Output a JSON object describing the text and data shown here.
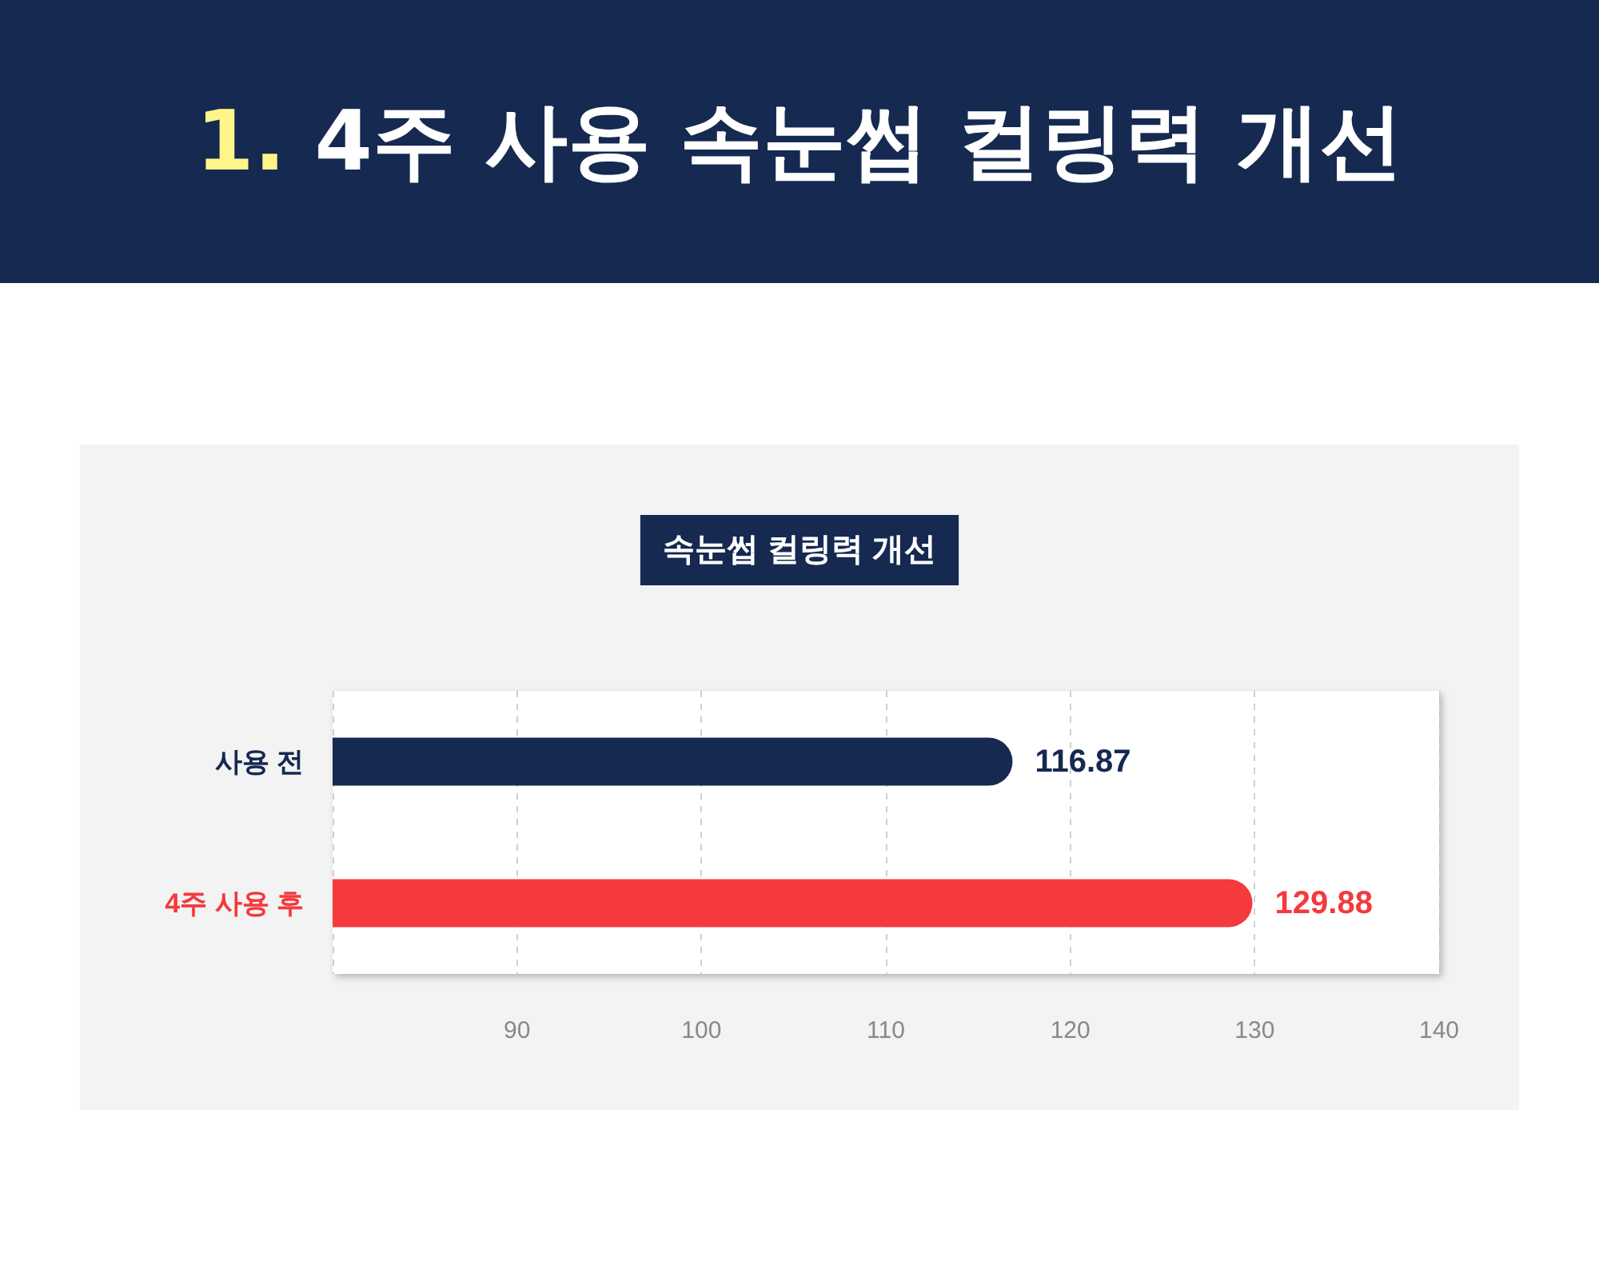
{
  "chart_data": {
    "type": "bar",
    "title": "1. 4주 사용 속눈썹 컬링력 개선",
    "subtitle": "속눈썹 컬링력 개선",
    "orientation": "horizontal",
    "categories": [
      "사용 전",
      "4주 사용 후"
    ],
    "values": [
      116.87,
      129.88
    ],
    "colors": [
      "#152951",
      "#f43a3d"
    ],
    "xlim": [
      80,
      140
    ],
    "xticks": [
      {
        "value": 80,
        "label": null
      },
      90,
      100,
      110,
      120,
      130,
      140
    ],
    "grid": "x",
    "data_labels": true
  }
}
